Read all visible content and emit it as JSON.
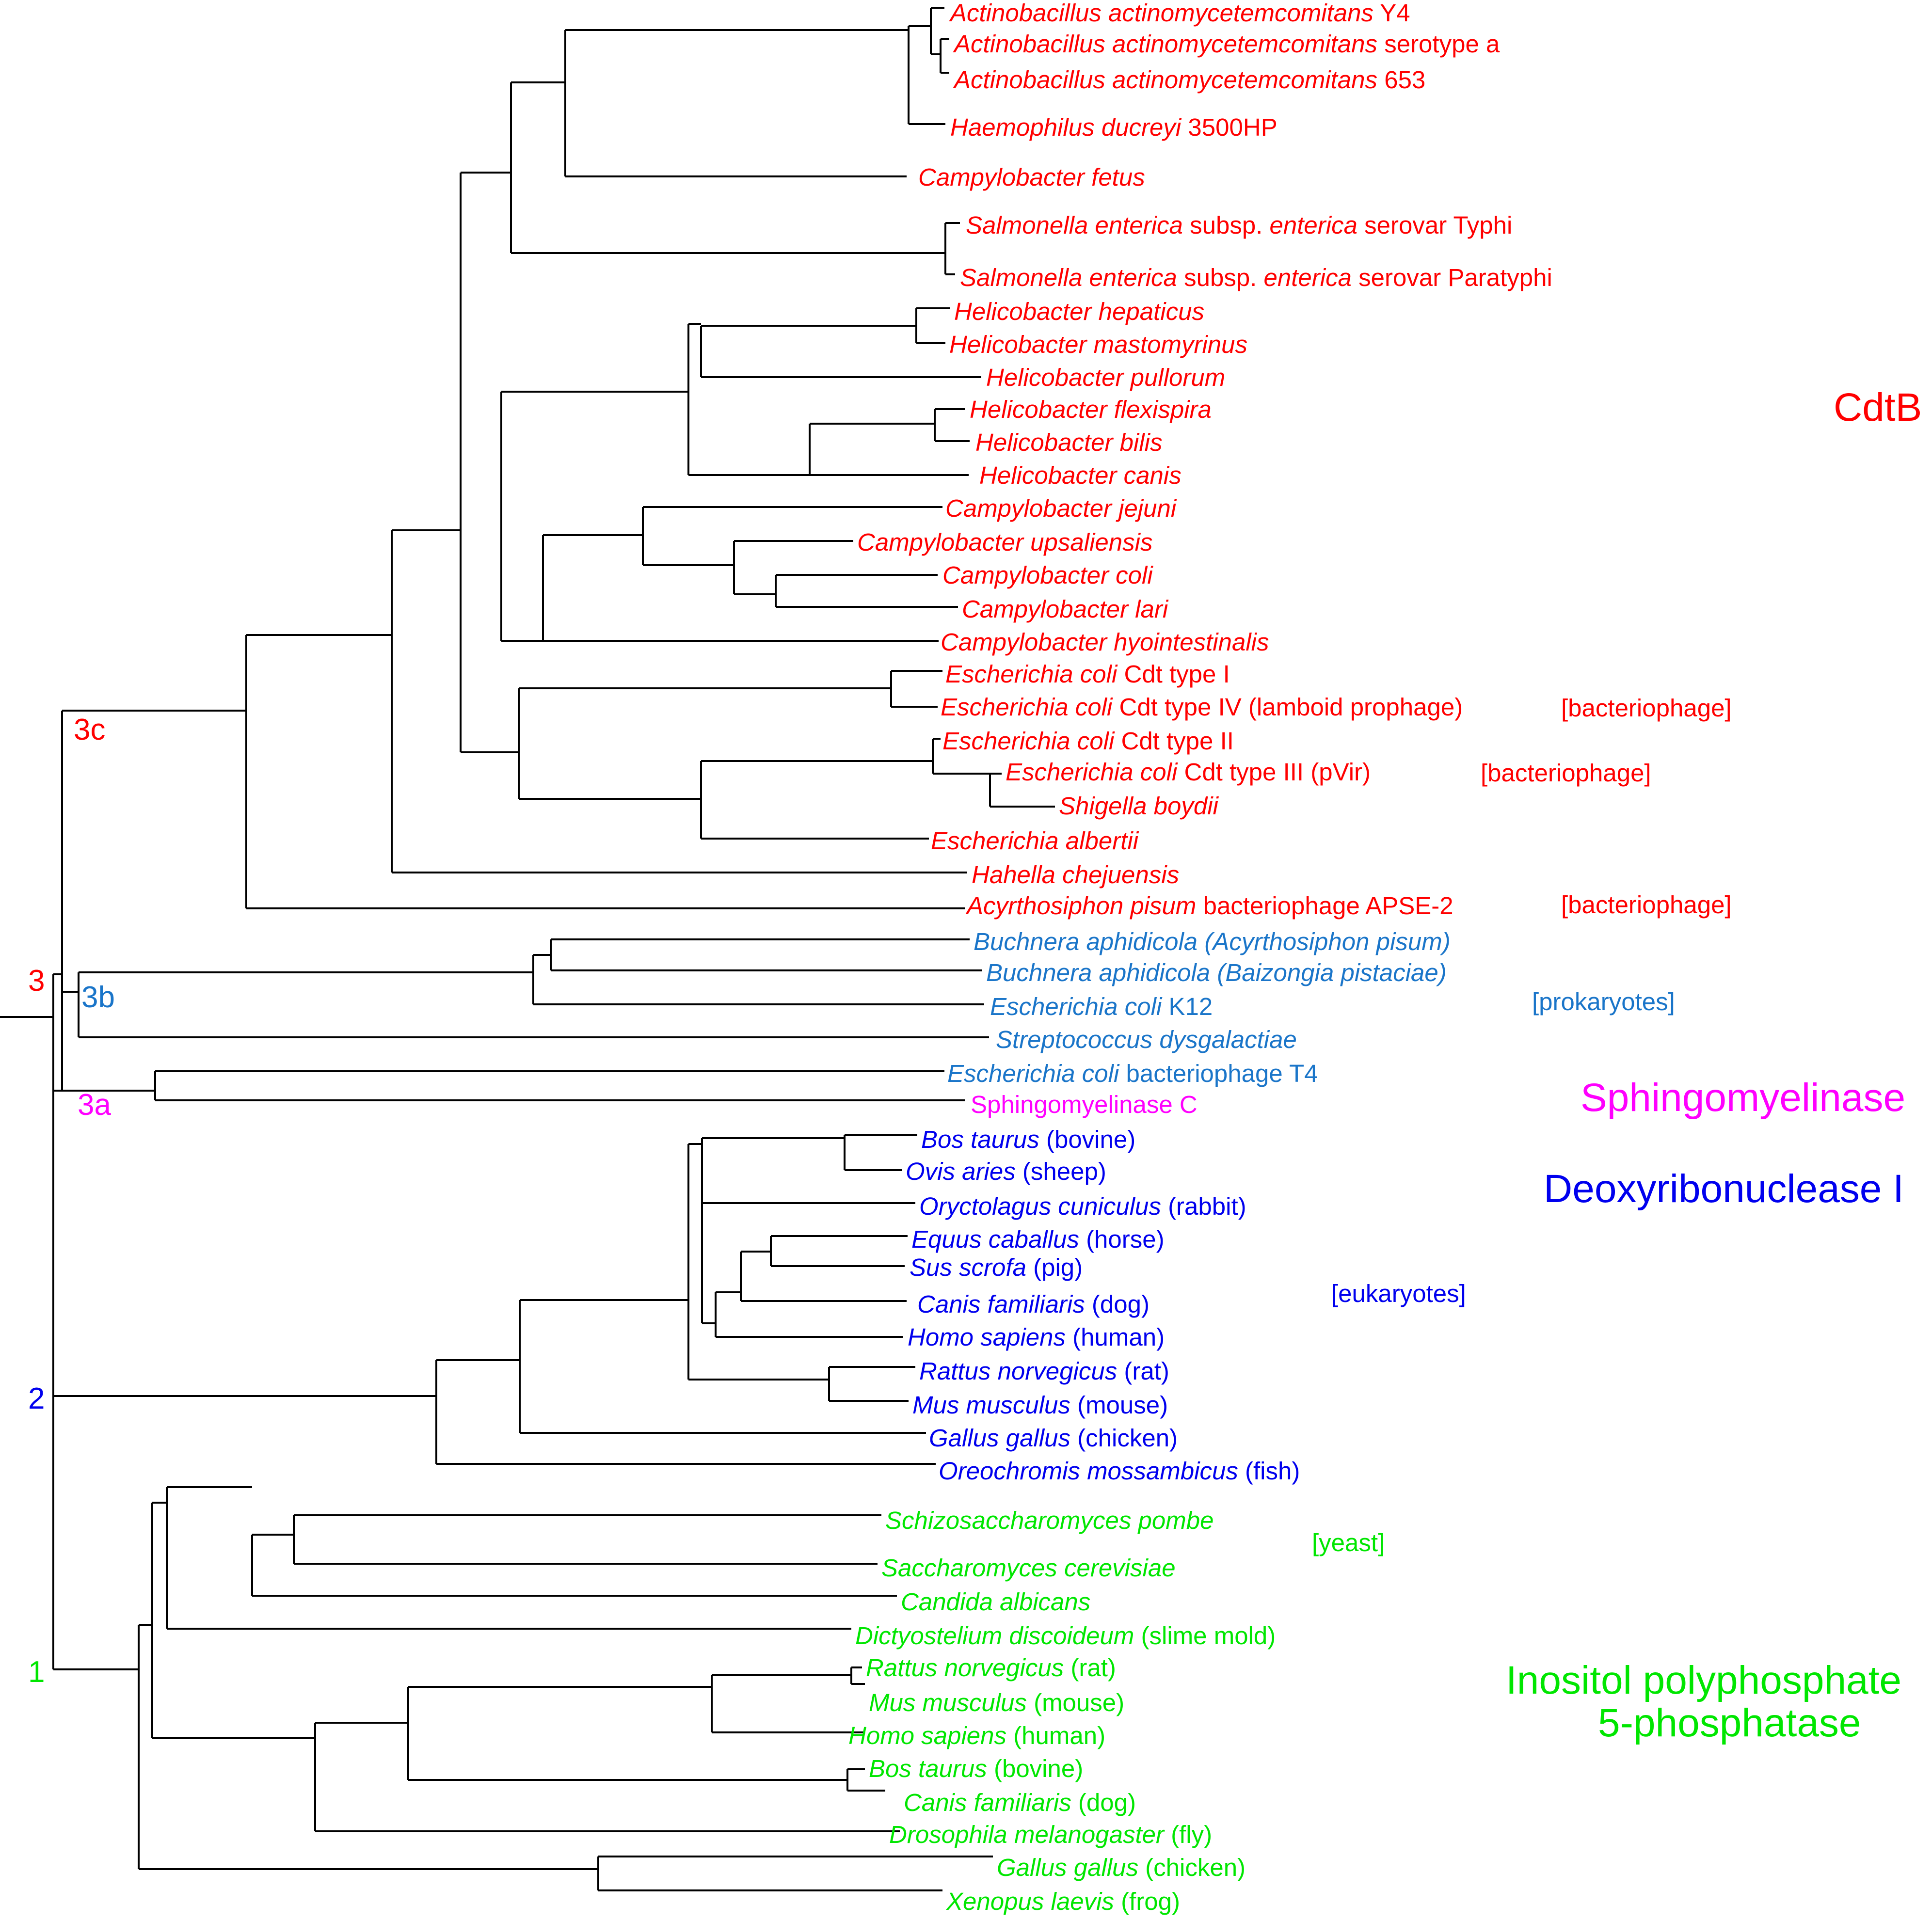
{
  "colors": {
    "cdtb": "#ff0000",
    "prok": "#1a75c9",
    "sphingo": "#ff00ff",
    "dnase": "#0000ee",
    "inositol": "#00e600",
    "edge": "#000000"
  },
  "taxa": [
    {
      "id": "t1",
      "parts": [
        {
          "t": "Actinobacillus actinomycetemcomitans",
          "i": true
        },
        {
          "t": " Y4"
        }
      ]
    },
    {
      "id": "t2",
      "parts": [
        {
          "t": "Actinobacillus actinomycetemcomitans",
          "i": true
        },
        {
          "t": " serotype a"
        }
      ]
    },
    {
      "id": "t3",
      "parts": [
        {
          "t": "Actinobacillus actinomycetemcomitans",
          "i": true
        },
        {
          "t": " 653"
        }
      ]
    },
    {
      "id": "t4",
      "parts": [
        {
          "t": "Haemophilus ducreyi",
          "i": true
        },
        {
          "t": " 3500HP"
        }
      ]
    },
    {
      "id": "t5",
      "parts": [
        {
          "t": "Campylobacter fetus",
          "i": true
        }
      ]
    },
    {
      "id": "t6",
      "parts": [
        {
          "t": "Salmonella enterica",
          "i": true
        },
        {
          "t": " subsp. "
        },
        {
          "t": "enterica",
          "i": true
        },
        {
          "t": " serovar Typhi"
        }
      ]
    },
    {
      "id": "t7",
      "parts": [
        {
          "t": "Salmonella enterica",
          "i": true
        },
        {
          "t": " subsp. "
        },
        {
          "t": "enterica",
          "i": true
        },
        {
          "t": " serovar Paratyphi"
        }
      ]
    },
    {
      "id": "t8",
      "parts": [
        {
          "t": "Helicobacter hepaticus",
          "i": true
        }
      ]
    },
    {
      "id": "t9",
      "parts": [
        {
          "t": "Helicobacter mastomyrinus",
          "i": true
        }
      ]
    },
    {
      "id": "t10",
      "parts": [
        {
          "t": "Helicobacter pullorum",
          "i": true
        }
      ]
    },
    {
      "id": "t11",
      "parts": [
        {
          "t": "Helicobacter flexispira",
          "i": true
        }
      ]
    },
    {
      "id": "t12",
      "parts": [
        {
          "t": "Helicobacter bilis",
          "i": true
        }
      ]
    },
    {
      "id": "t13",
      "parts": [
        {
          "t": "Helicobacter canis",
          "i": true
        }
      ]
    },
    {
      "id": "t14",
      "parts": [
        {
          "t": "Campylobacter jejuni",
          "i": true
        }
      ]
    },
    {
      "id": "t15",
      "parts": [
        {
          "t": "Campylobacter upsaliensis",
          "i": true
        }
      ]
    },
    {
      "id": "t16",
      "parts": [
        {
          "t": "Campylobacter coli",
          "i": true
        }
      ]
    },
    {
      "id": "t17",
      "parts": [
        {
          "t": "Campylobacter lari",
          "i": true
        }
      ]
    },
    {
      "id": "t18",
      "parts": [
        {
          "t": "Campylobacter hyointestinalis",
          "i": true
        }
      ]
    },
    {
      "id": "t19",
      "parts": [
        {
          "t": "Escherichia coli",
          "i": true
        },
        {
          "t": " Cdt type I"
        }
      ]
    },
    {
      "id": "t20",
      "parts": [
        {
          "t": "Escherichia coli",
          "i": true
        },
        {
          "t": " Cdt type IV (lamboid prophage)"
        }
      ]
    },
    {
      "id": "t21",
      "parts": [
        {
          "t": "Escherichia coli",
          "i": true
        },
        {
          "t": " Cdt type II"
        }
      ]
    },
    {
      "id": "t22",
      "parts": [
        {
          "t": "Escherichia coli",
          "i": true
        },
        {
          "t": " Cdt type III (pVir)"
        }
      ]
    },
    {
      "id": "t23",
      "parts": [
        {
          "t": "Shigella boydii",
          "i": true
        }
      ]
    },
    {
      "id": "t24",
      "parts": [
        {
          "t": "Escherichia albertii",
          "i": true
        }
      ]
    },
    {
      "id": "t25",
      "parts": [
        {
          "t": "Hahella chejuensis",
          "i": true
        }
      ]
    },
    {
      "id": "t26",
      "parts": [
        {
          "t": "Acyrthosiphon pisum",
          "i": true
        },
        {
          "t": " bacteriophage APSE-2"
        }
      ]
    },
    {
      "id": "t27",
      "parts": [
        {
          "t": "Buchnera aphidicola (Acyrthosiphon pisum)",
          "i": true
        }
      ]
    },
    {
      "id": "t28",
      "parts": [
        {
          "t": "Buchnera aphidicola (Baizongia pistaciae)",
          "i": true
        }
      ]
    },
    {
      "id": "t29",
      "parts": [
        {
          "t": "Escherichia coli",
          "i": true
        },
        {
          "t": " K12"
        }
      ]
    },
    {
      "id": "t30",
      "parts": [
        {
          "t": "Streptococcus dysgalactiae",
          "i": true
        }
      ]
    },
    {
      "id": "t31",
      "parts": [
        {
          "t": "Escherichia coli",
          "i": true
        },
        {
          "t": " bacteriophage T4"
        }
      ]
    },
    {
      "id": "t32",
      "parts": [
        {
          "t": "Sphingomyelinase C"
        }
      ]
    },
    {
      "id": "t33",
      "parts": [
        {
          "t": "Bos taurus",
          "i": true
        },
        {
          "t": " (bovine)"
        }
      ]
    },
    {
      "id": "t34",
      "parts": [
        {
          "t": "Ovis aries",
          "i": true
        },
        {
          "t": " (sheep)"
        }
      ]
    },
    {
      "id": "t35",
      "parts": [
        {
          "t": "Oryctolagus cuniculus",
          "i": true
        },
        {
          "t": " (rabbit)"
        }
      ]
    },
    {
      "id": "t36",
      "parts": [
        {
          "t": "Equus caballus",
          "i": true
        },
        {
          "t": " (horse)"
        }
      ]
    },
    {
      "id": "t37",
      "parts": [
        {
          "t": "Sus scrofa",
          "i": true
        },
        {
          "t": " (pig)"
        }
      ]
    },
    {
      "id": "t38",
      "parts": [
        {
          "t": "Canis familiaris",
          "i": true
        },
        {
          "t": " (dog)"
        }
      ]
    },
    {
      "id": "t39",
      "parts": [
        {
          "t": "Homo sapiens",
          "i": true
        },
        {
          "t": " (human)"
        }
      ]
    },
    {
      "id": "t40",
      "parts": [
        {
          "t": "Rattus norvegicus",
          "i": true
        },
        {
          "t": " (rat)"
        }
      ]
    },
    {
      "id": "t41",
      "parts": [
        {
          "t": "Mus musculus",
          "i": true
        },
        {
          "t": " (mouse)"
        }
      ]
    },
    {
      "id": "t42",
      "parts": [
        {
          "t": "Gallus gallus",
          "i": true
        },
        {
          "t": " (chicken)"
        }
      ]
    },
    {
      "id": "t43",
      "parts": [
        {
          "t": "Oreochromis mossambicus",
          "i": true
        },
        {
          "t": " (fish)"
        }
      ]
    },
    {
      "id": "t44",
      "parts": [
        {
          "t": "Schizosaccharomyces pombe",
          "i": true
        }
      ]
    },
    {
      "id": "t45",
      "parts": [
        {
          "t": "Saccharomyces cerevisiae",
          "i": true
        }
      ]
    },
    {
      "id": "t46",
      "parts": [
        {
          "t": "Candida albicans",
          "i": true
        }
      ]
    },
    {
      "id": "t47",
      "parts": [
        {
          "t": "Dictyostelium discoideum",
          "i": true
        },
        {
          "t": " (slime mold)"
        }
      ]
    },
    {
      "id": "t48",
      "parts": [
        {
          "t": "Rattus norvegicus",
          "i": true
        },
        {
          "t": " (rat)"
        }
      ]
    },
    {
      "id": "t49",
      "parts": [
        {
          "t": "Mus musculus",
          "i": true
        },
        {
          "t": " (mouse)"
        }
      ]
    },
    {
      "id": "t50",
      "parts": [
        {
          "t": "Homo sapiens",
          "i": true
        },
        {
          "t": " (human)"
        }
      ]
    },
    {
      "id": "t51",
      "parts": [
        {
          "t": "Bos taurus",
          "i": true
        },
        {
          "t": " (bovine)"
        }
      ]
    },
    {
      "id": "t52",
      "parts": [
        {
          "t": "Canis familiaris",
          "i": true
        },
        {
          "t": " (dog)"
        }
      ]
    },
    {
      "id": "t53",
      "parts": [
        {
          "t": "Drosophila melanogaster",
          "i": true
        },
        {
          "t": " (fly)"
        }
      ]
    },
    {
      "id": "t54",
      "parts": [
        {
          "t": "Gallus gallus",
          "i": true
        },
        {
          "t": " (chicken)"
        }
      ]
    },
    {
      "id": "t55",
      "parts": [
        {
          "t": "Xenopus laevis",
          "i": true
        },
        {
          "t": " (frog)"
        }
      ]
    }
  ],
  "categories": {
    "phage1": "[bacteriophage]",
    "phage2": "[bacteriophage]",
    "phage3": "[bacteriophage]",
    "prokaryotes": "[prokaryotes]",
    "eukaryotes": "[eukaryotes]",
    "yeast": "[yeast]"
  },
  "groups": {
    "cdtb": "CdtB",
    "sphingo": "Sphingomyelinase",
    "dnase": "Deoxyribonuclease I",
    "inositol_line1": "Inositol polyphosphate",
    "inositol_line2": "5-phosphatase"
  },
  "nodes": {
    "n3": "3",
    "n3c": "3c",
    "n3b": "3b",
    "n3a": "3a",
    "n2": "2",
    "n1": "1"
  }
}
